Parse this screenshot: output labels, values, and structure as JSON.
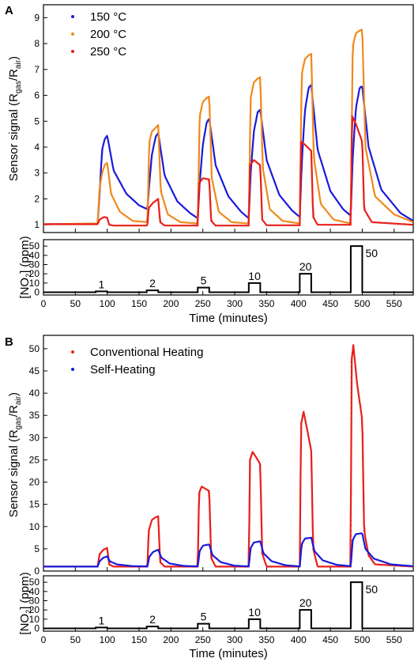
{
  "chart_data": [
    {
      "panel": "A",
      "type": "line",
      "ylabel": "Sensor signal (R_gas/R_air)",
      "xlim": [
        0,
        580
      ],
      "ylim": [
        0.7,
        9.5
      ],
      "xticks": [
        0,
        50,
        100,
        150,
        200,
        250,
        300,
        350,
        400,
        450,
        500,
        550
      ],
      "yticks": [
        1,
        2,
        3,
        4,
        5,
        6,
        7,
        8,
        9
      ],
      "legend_position": "top-left",
      "series": [
        {
          "name": "150 °C",
          "color": "#1a1adb",
          "peaks": [
            4.45,
            4.55,
            5.1,
            5.45,
            6.4,
            6.35
          ],
          "x": [
            0,
            85,
            88,
            92,
            96,
            100,
            110,
            130,
            150,
            163,
            166,
            170,
            176,
            180,
            190,
            210,
            230,
            242,
            245,
            250,
            256,
            260,
            270,
            290,
            310,
            322,
            325,
            330,
            336,
            340,
            350,
            370,
            390,
            402,
            405,
            410,
            416,
            420,
            430,
            450,
            470,
            482,
            485,
            490,
            496,
            500,
            510,
            530,
            560,
            580
          ],
          "y": [
            1.02,
            1.04,
            2.2,
            3.9,
            4.3,
            4.45,
            3.1,
            2.2,
            1.75,
            1.6,
            2.6,
            3.7,
            4.4,
            4.55,
            2.9,
            1.9,
            1.45,
            1.25,
            2.6,
            4.1,
            4.95,
            5.1,
            3.3,
            2.1,
            1.5,
            1.25,
            3.0,
            4.6,
            5.35,
            5.45,
            3.5,
            2.15,
            1.55,
            1.3,
            3.3,
            5.4,
            6.3,
            6.4,
            3.9,
            2.3,
            1.6,
            1.35,
            3.6,
            5.5,
            6.3,
            6.35,
            4.0,
            2.35,
            1.45,
            1.15
          ]
        },
        {
          "name": "200 °C",
          "color": "#f0891c",
          "peaks": [
            3.4,
            4.85,
            5.95,
            6.7,
            7.6,
            8.55
          ],
          "x": [
            0,
            85,
            88,
            92,
            96,
            100,
            106,
            120,
            140,
            163,
            166,
            170,
            176,
            180,
            184,
            195,
            215,
            242,
            245,
            250,
            256,
            260,
            264,
            275,
            295,
            322,
            325,
            330,
            336,
            340,
            344,
            355,
            375,
            402,
            405,
            410,
            416,
            420,
            424,
            435,
            455,
            482,
            485,
            490,
            496,
            500,
            505,
            520,
            550,
            580
          ],
          "y": [
            1.02,
            1.05,
            2.4,
            3.0,
            3.3,
            3.4,
            2.2,
            1.5,
            1.15,
            1.1,
            4.2,
            4.6,
            4.75,
            4.85,
            2.3,
            1.4,
            1.1,
            1.05,
            5.2,
            5.75,
            5.9,
            5.95,
            2.8,
            1.5,
            1.1,
            1.05,
            5.9,
            6.5,
            6.65,
            6.7,
            3.2,
            1.6,
            1.15,
            1.05,
            6.8,
            7.4,
            7.55,
            7.6,
            3.6,
            1.8,
            1.2,
            1.05,
            7.9,
            8.4,
            8.5,
            8.55,
            4.0,
            2.1,
            1.4,
            1.1
          ]
        },
        {
          "name": "250 °C",
          "color": "#e8201a",
          "peaks": [
            1.3,
            2.0,
            2.8,
            3.5,
            4.2,
            5.2
          ],
          "x": [
            0,
            85,
            88,
            95,
            100,
            103,
            110,
            163,
            165,
            172,
            180,
            183,
            190,
            242,
            244,
            250,
            260,
            263,
            270,
            322,
            324,
            330,
            340,
            343,
            350,
            402,
            404,
            410,
            420,
            423,
            430,
            482,
            484,
            490,
            500,
            503,
            515,
            580
          ],
          "y": [
            1.02,
            1.02,
            1.2,
            1.3,
            1.28,
            1.0,
            0.97,
            0.97,
            1.65,
            1.85,
            2.0,
            1.1,
            0.97,
            0.97,
            2.6,
            2.8,
            2.75,
            1.15,
            0.97,
            0.97,
            3.3,
            3.5,
            3.3,
            1.2,
            0.98,
            0.98,
            4.2,
            4.1,
            3.85,
            1.3,
            1.0,
            1.0,
            5.2,
            4.9,
            4.2,
            1.6,
            1.1,
            1.0
          ]
        }
      ]
    },
    {
      "panel": "A-bottom",
      "type": "line",
      "ylabel": "[NO2] (ppm)",
      "xlabel": "Time (minutes)",
      "xlim": [
        0,
        580
      ],
      "ylim": [
        -3,
        57
      ],
      "yticks": [
        0,
        10,
        20,
        30,
        40,
        50
      ],
      "xticks": [
        0,
        50,
        100,
        150,
        200,
        250,
        300,
        350,
        400,
        450,
        500,
        550
      ],
      "pulses": [
        {
          "start": 82,
          "end": 100,
          "level": 1,
          "label": "1"
        },
        {
          "start": 162,
          "end": 180,
          "level": 2,
          "label": "2"
        },
        {
          "start": 242,
          "end": 260,
          "level": 5,
          "label": "5"
        },
        {
          "start": 322,
          "end": 340,
          "level": 10,
          "label": "10"
        },
        {
          "start": 402,
          "end": 420,
          "level": 20,
          "label": "20"
        },
        {
          "start": 482,
          "end": 500,
          "level": 50,
          "label": "50"
        }
      ]
    },
    {
      "panel": "B",
      "type": "line",
      "ylabel": "Sensor signal (R_gas/R_air)",
      "xlim": [
        0,
        580
      ],
      "ylim": [
        0,
        53
      ],
      "yticks": [
        0,
        5,
        10,
        15,
        20,
        25,
        30,
        35,
        40,
        45,
        50
      ],
      "xticks": [
        0,
        50,
        100,
        150,
        200,
        250,
        300,
        350,
        400,
        450,
        500,
        550
      ],
      "legend_position": "top-left",
      "series": [
        {
          "name": "Conventional Heating",
          "color": "#e8201a",
          "peaks": [
            5.2,
            12.3,
            19.0,
            26.8,
            35.8,
            50.8
          ],
          "x": [
            0,
            85,
            88,
            94,
            100,
            103,
            110,
            163,
            165,
            170,
            176,
            180,
            183,
            190,
            242,
            244,
            248,
            254,
            260,
            263,
            270,
            322,
            324,
            328,
            334,
            340,
            343,
            350,
            402,
            404,
            408,
            414,
            420,
            423,
            430,
            482,
            483,
            486,
            492,
            500,
            503,
            510,
            520,
            580
          ],
          "y": [
            1.0,
            1.0,
            3.8,
            4.8,
            5.2,
            1.5,
            1.0,
            1.0,
            9.0,
            11.5,
            12.1,
            12.3,
            2.0,
            1.0,
            1.0,
            17.5,
            19.0,
            18.5,
            18.0,
            3.0,
            1.0,
            1.0,
            25.0,
            26.8,
            25.5,
            24.0,
            4.0,
            1.0,
            1.0,
            33.0,
            35.8,
            31.5,
            27.0,
            5.0,
            1.0,
            1.0,
            47.0,
            50.8,
            42.0,
            34.0,
            9.0,
            3.5,
            1.5,
            1.0
          ]
        },
        {
          "name": "Self-Heating",
          "color": "#1a1adb",
          "peaks": [
            3.3,
            4.8,
            6.0,
            6.7,
            7.5,
            8.5
          ],
          "x": [
            0,
            85,
            88,
            94,
            100,
            104,
            115,
            140,
            163,
            166,
            172,
            180,
            185,
            198,
            220,
            242,
            245,
            250,
            260,
            265,
            278,
            300,
            322,
            325,
            330,
            340,
            345,
            358,
            380,
            402,
            405,
            410,
            420,
            425,
            438,
            460,
            482,
            485,
            490,
            500,
            505,
            518,
            545,
            580
          ],
          "y": [
            1.0,
            1.0,
            2.2,
            3.0,
            3.3,
            2.2,
            1.5,
            1.1,
            1.05,
            3.2,
            4.3,
            4.8,
            3.0,
            1.7,
            1.15,
            1.05,
            4.5,
            5.7,
            6.0,
            3.6,
            2.0,
            1.2,
            1.05,
            5.2,
            6.4,
            6.7,
            4.0,
            2.2,
            1.3,
            1.05,
            6.0,
            7.3,
            7.5,
            4.5,
            2.4,
            1.4,
            1.1,
            7.0,
            8.3,
            8.5,
            5.0,
            2.8,
            1.5,
            1.1
          ]
        }
      ]
    },
    {
      "panel": "B-bottom",
      "type": "line",
      "ylabel": "[NO2] (ppm)",
      "xlabel": "Time (minutes)",
      "xlim": [
        0,
        580
      ],
      "ylim": [
        -3,
        57
      ],
      "yticks": [
        0,
        10,
        20,
        30,
        40,
        50
      ],
      "xticks": [
        0,
        50,
        100,
        150,
        200,
        250,
        300,
        350,
        400,
        450,
        500,
        550
      ],
      "pulses": [
        {
          "start": 82,
          "end": 100,
          "level": 1,
          "label": "1"
        },
        {
          "start": 162,
          "end": 180,
          "level": 2,
          "label": "2"
        },
        {
          "start": 242,
          "end": 260,
          "level": 5,
          "label": "5"
        },
        {
          "start": 322,
          "end": 340,
          "level": 10,
          "label": "10"
        },
        {
          "start": 402,
          "end": 420,
          "level": 20,
          "label": "20"
        },
        {
          "start": 482,
          "end": 500,
          "level": 50,
          "label": "50"
        }
      ]
    }
  ],
  "labels": {
    "panel_a": "A",
    "panel_b": "B",
    "ylabel_main_prefix": "Sensor signal (R",
    "ylabel_main_sub1": "gas",
    "ylabel_main_mid": "/R",
    "ylabel_main_sub2": "air",
    "ylabel_main_suffix": ")",
    "ylabel_small_prefix": "[NO",
    "ylabel_small_sub": "2",
    "ylabel_small_suffix": "] (ppm)",
    "xlabel": "Time (minutes)"
  }
}
